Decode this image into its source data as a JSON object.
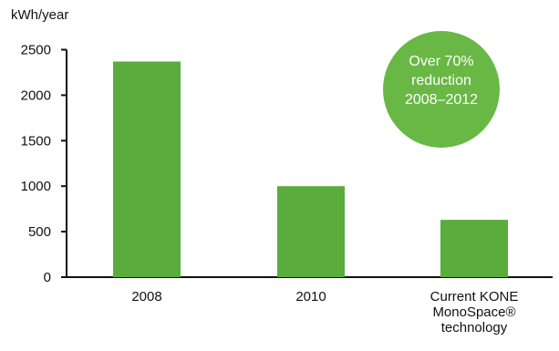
{
  "chart_data": {
    "type": "bar",
    "ylabel": "kWh/year",
    "categories": [
      [
        "2008"
      ],
      [
        "2010"
      ],
      [
        "Current KONE",
        "MonoSpace®",
        "technology"
      ]
    ],
    "values": [
      2370,
      1000,
      630
    ],
    "ylim": [
      0,
      2500
    ],
    "yticks": [
      0,
      500,
      1000,
      1500,
      2000,
      2500
    ],
    "grid": false,
    "bar_color": "#5aac3c",
    "annotation": {
      "lines": [
        "Over 70%",
        "reduction",
        "2008–2012"
      ],
      "color": "#69b845",
      "text_color": "#ffffff"
    }
  }
}
